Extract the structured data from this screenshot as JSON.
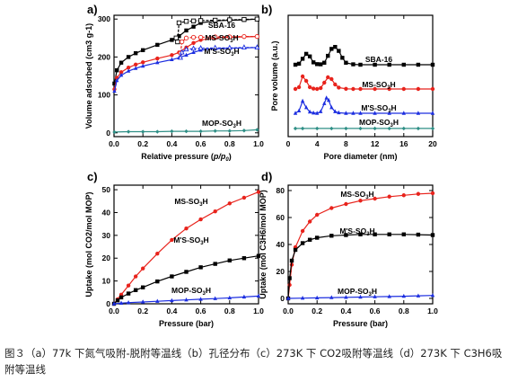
{
  "figure": {
    "caption": "图３（a）77k 下氮气吸附-脱附等温线（b）孔径分布（c）273K 下 CO2吸附等温线（d）273K 下 C3H6吸附等温线"
  },
  "colors": {
    "black": "#000000",
    "red": "#e8231c",
    "blue": "#1c2ee0",
    "teal": "#2f8f86"
  },
  "chart_data": [
    {
      "id": "a",
      "panel_label": "a)",
      "type": "line",
      "xlabel": "Relative pressure (p/p0)",
      "ylabel": "Volume adsorbed (cm3 g-1)",
      "xlim": [
        0,
        1.0
      ],
      "ylim": [
        -10,
        310
      ],
      "xticks": [
        "0.0",
        "0.2",
        "0.4",
        "0.6",
        "0.8",
        "1.0"
      ],
      "yticks": [
        "0",
        "100",
        "200",
        "300"
      ],
      "series": [
        {
          "name": "SBA-16",
          "color": "#000000",
          "marker": "square",
          "x": [
            0.003,
            0.02,
            0.05,
            0.1,
            0.15,
            0.2,
            0.3,
            0.4,
            0.45,
            0.5,
            0.55,
            0.6,
            0.7,
            0.8,
            0.9,
            0.99
          ],
          "y": [
            130,
            165,
            185,
            200,
            210,
            218,
            232,
            245,
            255,
            270,
            280,
            290,
            295,
            297,
            298,
            300
          ],
          "desorption_x": [
            0.99,
            0.9,
            0.8,
            0.7,
            0.6,
            0.55,
            0.5,
            0.45,
            0.44,
            0.43
          ],
          "desorption_y": [
            300,
            299,
            298,
            297,
            296,
            295,
            294,
            290,
            240,
            250
          ]
        },
        {
          "name": "MS-SO3H",
          "color": "#e8231c",
          "marker": "circle",
          "x": [
            0.003,
            0.02,
            0.05,
            0.1,
            0.15,
            0.2,
            0.3,
            0.4,
            0.45,
            0.5,
            0.55,
            0.6,
            0.7,
            0.8,
            0.9,
            0.99
          ],
          "y": [
            115,
            145,
            160,
            172,
            180,
            186,
            196,
            205,
            212,
            225,
            237,
            245,
            250,
            252,
            253,
            254
          ],
          "desorption_x": [
            0.99,
            0.9,
            0.8,
            0.7,
            0.6,
            0.55,
            0.5,
            0.47,
            0.46
          ],
          "desorption_y": [
            254,
            254,
            253,
            253,
            252,
            252,
            250,
            240,
            210
          ]
        },
        {
          "name": "M'S-SO3H",
          "color": "#1c2ee0",
          "marker": "triangle",
          "x": [
            0.003,
            0.02,
            0.05,
            0.1,
            0.15,
            0.2,
            0.3,
            0.4,
            0.45,
            0.5,
            0.55,
            0.6,
            0.7,
            0.8,
            0.9,
            0.99
          ],
          "y": [
            110,
            138,
            152,
            163,
            170,
            176,
            185,
            193,
            198,
            205,
            212,
            218,
            222,
            223,
            224,
            225
          ],
          "desorption_x": [
            0.99,
            0.9,
            0.8,
            0.7,
            0.6,
            0.55,
            0.5,
            0.47,
            0.46
          ],
          "desorption_y": [
            225,
            225,
            224,
            224,
            223,
            222,
            220,
            212,
            198
          ]
        },
        {
          "name": "MOP-SO3H",
          "color": "#2f8f86",
          "marker": "diamond",
          "x": [
            0.003,
            0.1,
            0.2,
            0.3,
            0.4,
            0.5,
            0.6,
            0.7,
            0.8,
            0.9,
            0.99
          ],
          "y": [
            2,
            3,
            3,
            3,
            4,
            4,
            4,
            5,
            5,
            6,
            8
          ]
        }
      ]
    },
    {
      "id": "b",
      "panel_label": "b)",
      "type": "line",
      "xlabel": "Pore diameter (nm)",
      "ylabel": "Pore volume (a.u.)",
      "xlim": [
        0,
        20
      ],
      "xticks": [
        "0",
        "4",
        "8",
        "12",
        "16",
        "20"
      ],
      "series": [
        {
          "name": "SBA-16",
          "color": "#000000",
          "marker": "square",
          "x": [
            1,
            1.5,
            2,
            2.5,
            3,
            3.5,
            4,
            4.5,
            5,
            5.5,
            6,
            6.5,
            7,
            7.5,
            8,
            9,
            10,
            12,
            14,
            16,
            18,
            20
          ],
          "y": [
            0,
            0.05,
            0.3,
            0.55,
            0.42,
            0.12,
            0.03,
            0.02,
            0.1,
            0.45,
            0.8,
            0.9,
            0.7,
            0.35,
            0.1,
            0.02,
            0,
            0,
            0,
            0,
            0,
            0
          ]
        },
        {
          "name": "MS-SO3H",
          "color": "#e8231c",
          "marker": "circle",
          "x": [
            1,
            1.5,
            2,
            2.5,
            3,
            3.5,
            4,
            4.5,
            5,
            5.5,
            6,
            6.5,
            7,
            8,
            9,
            10,
            12,
            14,
            16,
            18,
            20
          ],
          "y": [
            0,
            0.1,
            0.7,
            0.45,
            0.1,
            0.02,
            0,
            0.05,
            0.35,
            0.65,
            0.55,
            0.25,
            0.08,
            0.01,
            0,
            0,
            0,
            0,
            0,
            0,
            0
          ]
        },
        {
          "name": "M'S-SO3H",
          "color": "#1c2ee0",
          "marker": "triangle",
          "x": [
            1,
            1.5,
            2,
            2.5,
            3,
            3.5,
            4,
            4.5,
            5,
            5.3,
            5.6,
            6,
            6.5,
            7,
            8,
            9,
            10,
            12,
            14,
            16,
            18,
            20
          ],
          "y": [
            0,
            0.15,
            0.75,
            0.35,
            0.08,
            0.02,
            0,
            0.1,
            0.6,
            0.95,
            0.8,
            0.35,
            0.1,
            0.03,
            0,
            0,
            0,
            0,
            0,
            0,
            0,
            0
          ]
        },
        {
          "name": "MOP-SO3H",
          "color": "#2f8f86",
          "marker": "diamond",
          "x": [
            1,
            2,
            4,
            6,
            8,
            10,
            12,
            14,
            16,
            18,
            20
          ],
          "y": [
            0.02,
            0.02,
            0.02,
            0.02,
            0.02,
            0.02,
            0.02,
            0.02,
            0.02,
            0.02,
            0.02
          ]
        }
      ]
    },
    {
      "id": "c",
      "panel_label": "c)",
      "type": "line",
      "xlabel": "Pressure (bar)",
      "ylabel": "Uptake (mol CO2/mol MOP)",
      "xlim": [
        0,
        1.0
      ],
      "ylim": [
        0,
        52
      ],
      "xticks": [
        "0.0",
        "0.2",
        "0.4",
        "0.6",
        "0.8",
        "1.0"
      ],
      "yticks": [
        "0",
        "10",
        "20",
        "30",
        "40",
        "50"
      ],
      "series": [
        {
          "name": "MS-SO3H",
          "color": "#e8231c",
          "marker": "circle",
          "x": [
            0,
            0.025,
            0.05,
            0.1,
            0.15,
            0.2,
            0.3,
            0.4,
            0.5,
            0.6,
            0.7,
            0.8,
            0.9,
            1.0
          ],
          "y": [
            0,
            2,
            4,
            8,
            12,
            15.5,
            22,
            28,
            33,
            37,
            40.5,
            44,
            46.5,
            49
          ]
        },
        {
          "name": "M'S-SO3H",
          "color": "#000000",
          "marker": "square",
          "x": [
            0,
            0.025,
            0.05,
            0.1,
            0.15,
            0.2,
            0.3,
            0.4,
            0.5,
            0.6,
            0.7,
            0.8,
            0.9,
            1.0
          ],
          "y": [
            0,
            1.5,
            2.8,
            4.5,
            6,
            7.2,
            9.8,
            12,
            14,
            16,
            17.5,
            19,
            20,
            21
          ]
        },
        {
          "name": "MOP-SO3H",
          "color": "#1c2ee0",
          "marker": "triangle",
          "x": [
            0,
            0.05,
            0.1,
            0.2,
            0.3,
            0.4,
            0.5,
            0.6,
            0.7,
            0.8,
            0.9,
            1.0
          ],
          "y": [
            0,
            0.3,
            0.5,
            0.8,
            1.1,
            1.4,
            1.7,
            2.0,
            2.3,
            2.6,
            3.0,
            3.4
          ]
        }
      ]
    },
    {
      "id": "d",
      "panel_label": "d)",
      "type": "line",
      "xlabel": "Pressure (bar)",
      "ylabel": "Uptake (mol C3H6/mol MOP)",
      "xlim": [
        0,
        1.0
      ],
      "ylim": [
        -4,
        84
      ],
      "xticks": [
        "0.0",
        "0.2",
        "0.4",
        "0.6",
        "0.8",
        "1.0"
      ],
      "yticks": [
        "0",
        "20",
        "40",
        "60",
        "80"
      ],
      "series": [
        {
          "name": "MS-SO3H",
          "color": "#e8231c",
          "marker": "circle",
          "x": [
            0,
            0.01,
            0.025,
            0.05,
            0.1,
            0.15,
            0.2,
            0.3,
            0.4,
            0.5,
            0.6,
            0.7,
            0.8,
            0.9,
            1.0
          ],
          "y": [
            0,
            10,
            25,
            38,
            50,
            57,
            62,
            67,
            70,
            72.5,
            74,
            75.5,
            76.5,
            77.5,
            78
          ]
        },
        {
          "name": "M'S-SO3H",
          "color": "#000000",
          "marker": "square",
          "x": [
            0,
            0.01,
            0.025,
            0.05,
            0.1,
            0.15,
            0.2,
            0.3,
            0.4,
            0.5,
            0.6,
            0.7,
            0.8,
            0.9,
            1.0
          ],
          "y": [
            0,
            15,
            28,
            36,
            41,
            43.5,
            45,
            46.5,
            47,
            47.5,
            47.5,
            47.5,
            47.5,
            47.3,
            47
          ]
        },
        {
          "name": "MOP-SO3H",
          "color": "#1c2ee0",
          "marker": "triangle",
          "x": [
            0,
            0.1,
            0.2,
            0.3,
            0.4,
            0.5,
            0.6,
            0.7,
            0.8,
            0.9,
            1.0
          ],
          "y": [
            0,
            0.2,
            0.4,
            0.6,
            0.8,
            1.0,
            1.2,
            1.4,
            1.6,
            1.9,
            2.2
          ]
        }
      ]
    }
  ]
}
